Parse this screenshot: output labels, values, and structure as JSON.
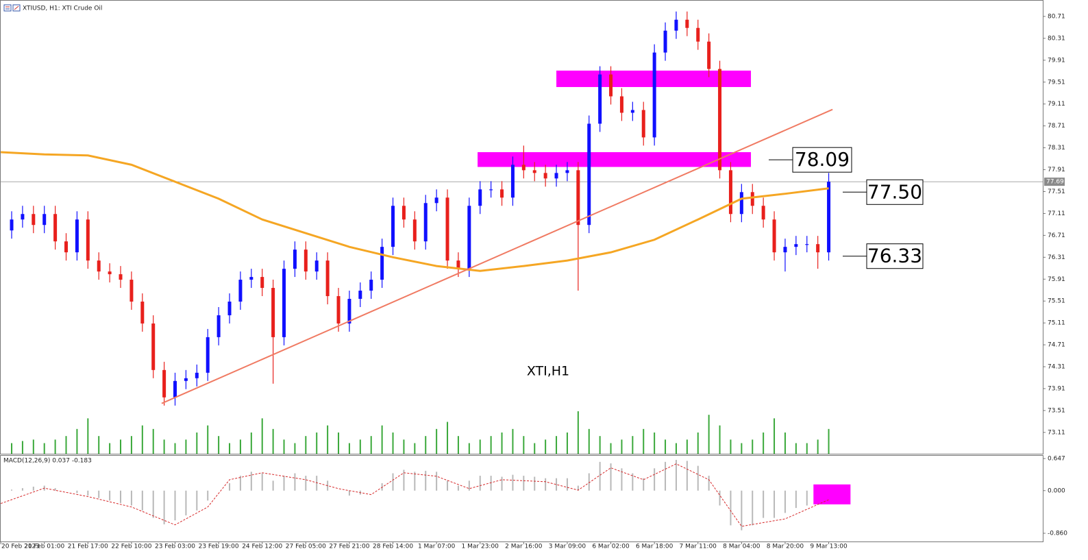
{
  "chart_data": [
    {
      "type": "candlestick",
      "title": "XTIUSD, H1:  XTI Crude Oil",
      "watermark": "XTI,H1",
      "up_color": "#1010ff",
      "down_color": "#e8201c",
      "open": [
        76.8,
        77.0,
        77.1,
        76.9,
        77.1,
        76.6,
        76.4,
        77.0,
        76.25,
        76.05,
        76.0,
        75.9,
        75.5,
        75.1,
        74.25,
        73.75,
        74.05,
        74.1,
        74.2,
        74.85,
        75.25,
        75.5,
        75.9,
        75.95,
        75.75,
        74.85,
        76.1,
        76.45,
        76.05,
        76.25,
        75.6,
        75.1,
        75.55,
        75.7,
        75.9,
        76.5,
        77.25,
        77.0,
        76.6,
        77.3,
        77.4,
        76.25,
        76.1,
        77.25,
        77.55,
        77.55,
        77.4,
        78.0,
        77.9,
        77.85,
        77.75,
        77.85,
        77.9,
        76.9,
        78.75,
        79.65,
        79.25,
        78.95,
        79.0,
        78.5,
        80.05,
        80.45,
        80.65,
        80.5,
        80.25,
        79.75,
        77.9,
        77.1,
        77.5,
        77.25,
        77.0,
        76.4,
        76.5,
        76.55,
        76.55,
        76.4
      ],
      "high": [
        77.15,
        77.25,
        77.25,
        77.25,
        77.25,
        76.75,
        77.15,
        77.15,
        76.4,
        76.2,
        76.15,
        76.05,
        75.65,
        75.25,
        74.4,
        74.2,
        74.25,
        74.35,
        75.0,
        75.4,
        75.65,
        76.05,
        76.1,
        76.1,
        75.9,
        76.25,
        76.6,
        76.6,
        76.4,
        76.4,
        75.75,
        75.7,
        75.85,
        76.05,
        76.65,
        77.4,
        77.4,
        77.15,
        77.45,
        77.55,
        77.55,
        76.4,
        77.4,
        77.7,
        77.7,
        77.7,
        78.15,
        78.35,
        78.05,
        78.0,
        78.0,
        78.05,
        78.05,
        78.9,
        79.8,
        79.8,
        79.4,
        79.15,
        79.15,
        80.2,
        80.6,
        80.8,
        80.8,
        80.65,
        80.4,
        79.9,
        78.05,
        77.65,
        77.65,
        77.4,
        77.15,
        76.65,
        76.7,
        76.7,
        76.7,
        77.85
      ],
      "low": [
        76.65,
        76.85,
        76.75,
        76.75,
        76.45,
        76.25,
        76.25,
        76.1,
        75.9,
        75.85,
        75.75,
        75.35,
        74.95,
        74.1,
        73.6,
        73.6,
        73.9,
        73.95,
        74.05,
        74.7,
        75.1,
        75.35,
        75.75,
        75.6,
        74.0,
        74.7,
        75.95,
        75.9,
        75.9,
        75.45,
        74.95,
        74.95,
        75.4,
        75.55,
        75.75,
        76.35,
        76.85,
        76.45,
        76.45,
        77.15,
        76.1,
        75.95,
        75.95,
        77.1,
        77.4,
        77.25,
        77.25,
        77.75,
        77.7,
        77.6,
        77.6,
        77.7,
        75.7,
        76.75,
        78.6,
        79.1,
        78.8,
        78.8,
        78.35,
        78.35,
        79.9,
        80.3,
        80.35,
        80.1,
        79.6,
        77.75,
        76.95,
        76.95,
        77.1,
        76.85,
        76.25,
        76.05,
        76.35,
        76.4,
        76.1,
        76.25
      ],
      "close": [
        77.0,
        77.1,
        76.9,
        77.1,
        76.6,
        76.4,
        77.0,
        76.25,
        76.05,
        76.0,
        75.9,
        75.5,
        75.1,
        74.25,
        73.75,
        74.05,
        74.1,
        74.2,
        74.85,
        75.25,
        75.5,
        75.9,
        75.95,
        75.75,
        74.85,
        76.1,
        76.45,
        76.05,
        76.25,
        75.6,
        75.1,
        75.55,
        75.7,
        75.9,
        76.5,
        77.25,
        77.0,
        76.6,
        77.3,
        77.4,
        76.25,
        76.1,
        77.25,
        77.55,
        77.55,
        77.4,
        78.0,
        77.9,
        77.85,
        77.75,
        77.85,
        77.9,
        76.9,
        78.75,
        79.65,
        79.25,
        78.95,
        79.0,
        78.5,
        80.05,
        80.45,
        80.65,
        80.5,
        80.25,
        79.75,
        77.9,
        77.1,
        77.5,
        77.25,
        77.0,
        76.4,
        76.5,
        76.55,
        76.55,
        76.4,
        77.69
      ],
      "volume": {
        "color": "#3aa83a",
        "values": [
          15,
          18,
          20,
          15,
          20,
          25,
          35,
          50,
          25,
          15,
          20,
          25,
          40,
          35,
          20,
          15,
          20,
          30,
          40,
          25,
          15,
          20,
          30,
          50,
          35,
          20,
          15,
          25,
          30,
          40,
          30,
          15,
          20,
          25,
          40,
          30,
          20,
          15,
          25,
          35,
          45,
          25,
          15,
          20,
          25,
          30,
          35,
          25,
          15,
          20,
          25,
          30,
          60,
          35,
          25,
          15,
          20,
          25,
          35,
          30,
          20,
          15,
          20,
          30,
          55,
          40,
          20,
          15,
          20,
          30,
          50,
          30,
          15,
          15,
          20,
          35
        ]
      },
      "moving_average": {
        "color": "#f5a623",
        "x": [
          -1,
          3,
          7,
          11,
          15,
          19,
          23,
          27,
          31,
          35,
          39,
          43,
          47,
          51,
          55,
          59,
          63,
          67,
          71,
          75
        ],
        "values": [
          78.23,
          78.19,
          78.17,
          78.0,
          77.69,
          77.38,
          77.0,
          76.75,
          76.5,
          76.31,
          76.15,
          76.06,
          76.15,
          76.25,
          76.4,
          76.63,
          77.0,
          77.38,
          77.47,
          77.57
        ]
      },
      "trendline": {
        "color": "#f07a62",
        "x": [
          13.77,
          75.35
        ],
        "values": [
          73.64,
          79.01
        ]
      },
      "zone_color": "#ff00ff",
      "zones": [
        {
          "x": [
            50.0,
            67.86
          ],
          "y": [
            79.42,
            79.72
          ]
        },
        {
          "x": [
            42.77,
            67.86
          ],
          "y": [
            77.96,
            78.23
          ]
        }
      ],
      "price_levels": [
        78.09,
        {
          "value": 77.5,
          "label": "77.50"
        },
        76.33
      ],
      "current_price": 77.69,
      "xlim": [
        -1.07,
        94.65
      ],
      "ylim": [
        72.72,
        81.01
      ],
      "yticks": [
        80.71,
        80.31,
        79.91,
        79.51,
        79.11,
        78.71,
        78.31,
        77.91,
        77.51,
        77.11,
        76.71,
        76.31,
        75.91,
        75.51,
        75.11,
        74.71,
        74.31,
        73.91,
        73.51,
        73.11
      ]
    },
    {
      "type": "macd",
      "label": "MACD(12,26,9) 0.037 -0.183",
      "histogram": {
        "color": "#b8b8b8",
        "values": [
          0.02,
          0.05,
          0.08,
          0.1,
          0.05,
          0.0,
          -0.05,
          -0.1,
          -0.15,
          -0.2,
          -0.25,
          -0.3,
          -0.4,
          -0.55,
          -0.68,
          -0.6,
          -0.5,
          -0.4,
          -0.2,
          0.0,
          0.15,
          0.3,
          0.38,
          0.35,
          0.2,
          0.3,
          0.35,
          0.3,
          0.3,
          0.2,
          0.0,
          -0.1,
          -0.08,
          0.0,
          0.15,
          0.35,
          0.42,
          0.38,
          0.4,
          0.38,
          0.2,
          0.1,
          0.2,
          0.3,
          0.3,
          0.28,
          0.32,
          0.3,
          0.28,
          0.25,
          0.25,
          0.25,
          0.1,
          0.35,
          0.58,
          0.55,
          0.45,
          0.35,
          0.25,
          0.45,
          0.58,
          0.62,
          0.6,
          0.5,
          0.3,
          -0.3,
          -0.7,
          -0.8,
          -0.7,
          -0.55,
          -0.55,
          -0.45,
          -0.35,
          -0.3,
          -0.28,
          0.037
        ]
      },
      "signal": {
        "color": "#d62728",
        "x": [
          -1,
          3,
          7,
          11,
          15,
          18,
          20,
          23,
          27,
          30,
          33,
          36,
          39,
          42,
          45,
          49,
          52,
          55,
          58,
          61,
          64,
          67,
          71,
          75
        ],
        "values": [
          -0.26,
          0.05,
          -0.12,
          -0.33,
          -0.69,
          -0.33,
          0.22,
          0.36,
          0.22,
          0.04,
          -0.08,
          0.36,
          0.29,
          0.04,
          0.22,
          0.18,
          0.01,
          0.46,
          0.22,
          0.54,
          0.22,
          -0.72,
          -0.57,
          -0.183
        ]
      },
      "zone_color": "#ff00ff",
      "zone": {
        "x": [
          73.6,
          77.0
        ],
        "y": [
          -0.277,
          0.125
        ]
      },
      "xlim": [
        -1.07,
        94.65
      ],
      "ylim": [
        -1.026,
        0.716
      ],
      "yticks": [
        0.647,
        {
          "value": 0,
          "label": "0.000"
        },
        {
          "value": -0.86,
          "label": "-0.860"
        }
      ],
      "xticks": [
        {
          "value": -1,
          "label": "20 Feb 2023"
        },
        {
          "value": 3,
          "label": "21 Feb 01:00"
        },
        {
          "value": 7,
          "label": "21 Feb 17:00"
        },
        {
          "value": 11,
          "label": "22 Feb 10:00"
        },
        {
          "value": 15,
          "label": "23 Feb 03:00"
        },
        {
          "value": 19,
          "label": "23 Feb 19:00"
        },
        {
          "value": 23,
          "label": "24 Feb 12:00"
        },
        {
          "value": 27,
          "label": "27 Feb 05:00"
        },
        {
          "value": 31,
          "label": "27 Feb 21:00"
        },
        {
          "value": 35,
          "label": "28 Feb 14:00"
        },
        {
          "value": 39,
          "label": "1 Mar 07:00"
        },
        {
          "value": 43,
          "label": "1 Mar 23:00"
        },
        {
          "value": 47,
          "label": "2 Mar 16:00"
        },
        {
          "value": 51,
          "label": "3 Mar 09:00"
        },
        {
          "value": 55,
          "label": "6 Mar 02:00"
        },
        {
          "value": 59,
          "label": "6 Mar 18:00"
        },
        {
          "value": 63,
          "label": "7 Mar 11:00"
        },
        {
          "value": 67,
          "label": "8 Mar 04:00"
        },
        {
          "value": 71,
          "label": "8 Mar 20:00"
        },
        {
          "value": 75,
          "label": "9 Mar 13:00"
        }
      ]
    }
  ]
}
